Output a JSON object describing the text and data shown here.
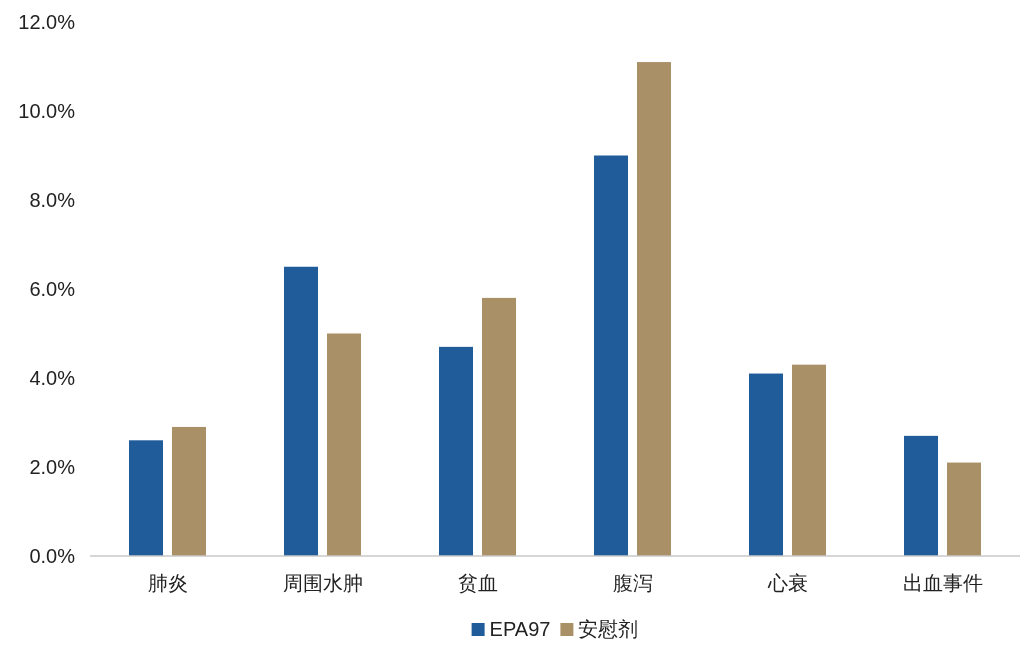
{
  "chart_data": {
    "type": "bar",
    "categories": [
      "肺炎",
      "周围水肿",
      "贫血",
      "腹泻",
      "心衰",
      "出血事件"
    ],
    "series": [
      {
        "name": "EPA97",
        "color": "#1f5c99",
        "values": [
          2.6,
          6.5,
          4.7,
          9.0,
          4.1,
          2.7
        ]
      },
      {
        "name": "安慰剂",
        "color": "#a99067",
        "values": [
          2.9,
          5.0,
          5.8,
          11.1,
          4.3,
          2.1
        ]
      }
    ],
    "ylim": [
      0,
      12
    ],
    "yticks": [
      {
        "value": 0,
        "label": "0.0%"
      },
      {
        "value": 2,
        "label": "2.0%"
      },
      {
        "value": 4,
        "label": "4.0%"
      },
      {
        "value": 6,
        "label": "6.0%"
      },
      {
        "value": 8,
        "label": "8.0%"
      },
      {
        "value": 10,
        "label": "10.0%"
      },
      {
        "value": 12,
        "label": "12.0%"
      }
    ],
    "legend": "bottom"
  }
}
